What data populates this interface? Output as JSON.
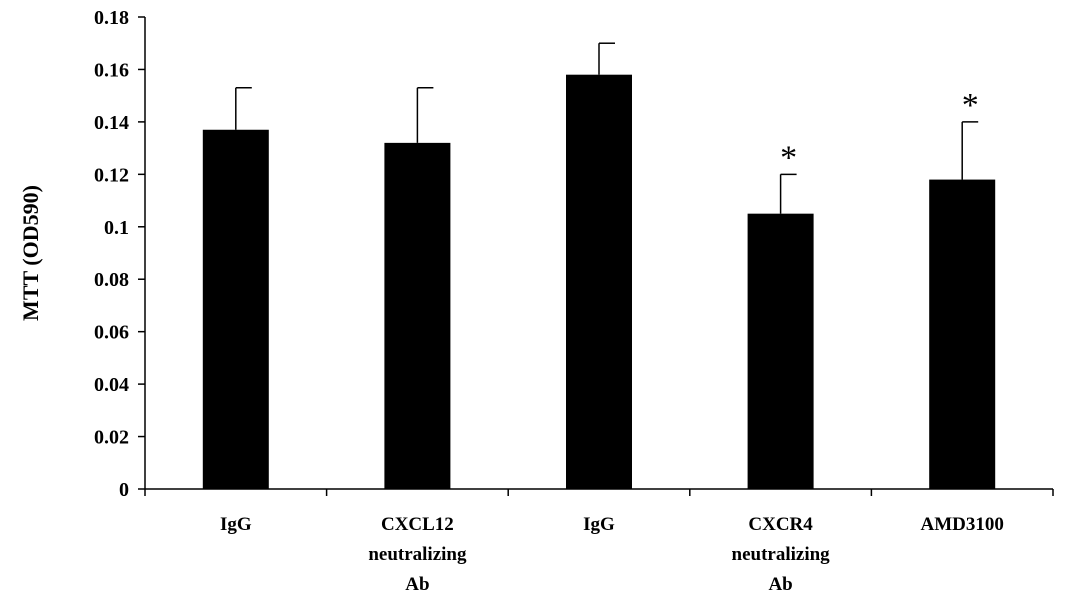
{
  "chart_data": {
    "type": "bar",
    "title": "",
    "xlabel": "",
    "ylabel": "MTT (OD590)",
    "ylim": [
      0,
      0.18
    ],
    "yticks": [
      "0",
      "0.02",
      "0.04",
      "0.06",
      "0.08",
      "0.1",
      "0.12",
      "0.14",
      "0.16",
      "0.18"
    ],
    "categories": [
      [
        "IgG"
      ],
      [
        "CXCL12",
        "neutralizing",
        "Ab"
      ],
      [
        "IgG"
      ],
      [
        "CXCR4",
        "neutralizing",
        "Ab"
      ],
      [
        "AMD3100"
      ]
    ],
    "values": [
      0.137,
      0.132,
      0.158,
      0.105,
      0.118
    ],
    "errors": [
      0.016,
      0.021,
      0.012,
      0.015,
      0.022
    ],
    "significance": [
      "",
      "",
      "",
      "*",
      "*"
    ],
    "bar_color": "#000000",
    "grid": false,
    "legend": "none"
  }
}
